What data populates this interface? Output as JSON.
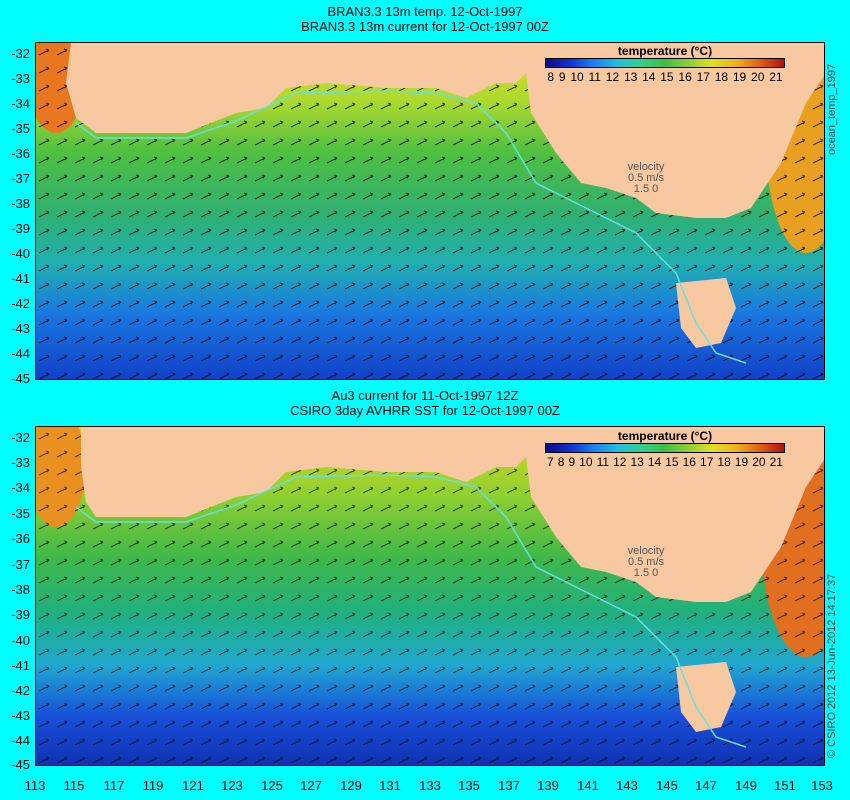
{
  "panels": [
    {
      "title1": "BRAN3.3 13m temp. 12-Oct-1997",
      "title2": "BRAN3.3 13m current for 12-Oct-1997 00Z",
      "legend_title": "temperature (°C)",
      "legend_ticks": [
        "8",
        "9",
        "10",
        "11",
        "12",
        "13",
        "14",
        "15",
        "16",
        "17",
        "18",
        "19",
        "20",
        "21"
      ],
      "velocity_label": "velocity",
      "velocity_value": "0.5 m/s",
      "velocity_scale": "1.5 0",
      "side_label": "ocean_temp_1997"
    },
    {
      "title1": "Au3 current for 11-Oct-1997 12Z",
      "title2": "CSIRO 3day AVHRR SST for 12-Oct-1997 00Z",
      "legend_title": "temperature (°C)",
      "legend_ticks": [
        "7",
        "8",
        "9",
        "10",
        "11",
        "12",
        "13",
        "14",
        "15",
        "16",
        "17",
        "18",
        "19",
        "20",
        "21"
      ],
      "velocity_label": "velocity",
      "velocity_value": "0.5 m/s",
      "velocity_scale": "1.5 0",
      "side_label": "© CSIRO 2012  13-Jun-2012 14:17:37"
    }
  ],
  "y_ticks": [
    "-32",
    "-33",
    "-34",
    "-35",
    "-36",
    "-37",
    "-38",
    "-39",
    "-40",
    "-41",
    "-42",
    "-43",
    "-44",
    "-45"
  ],
  "x_ticks": [
    "113",
    "115",
    "117",
    "119",
    "121",
    "123",
    "125",
    "127",
    "129",
    "131",
    "133",
    "135",
    "137",
    "139",
    "141",
    "143",
    "145",
    "147",
    "149",
    "151",
    "153"
  ],
  "colors": {
    "background": "#00ffff",
    "land": "#f8c8a0",
    "coast": "#66e0e0"
  }
}
